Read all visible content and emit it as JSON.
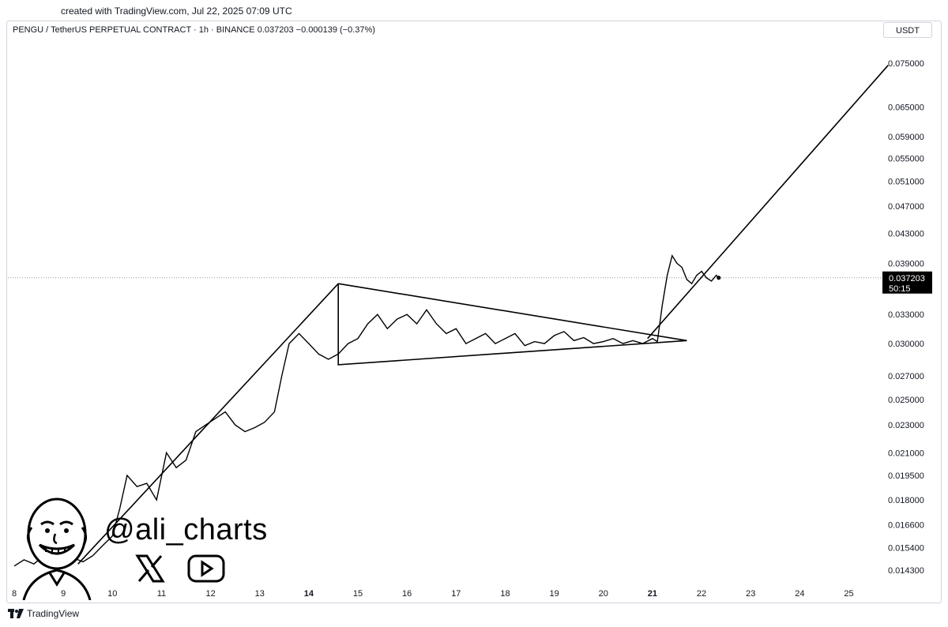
{
  "header": {
    "created": "created with TradingView.com, Jul 22, 2025 07:09 UTC",
    "symbol_line": "PENGU / TetherUS PERPETUAL CONTRACT · 1h · BINANCE  0.037203  −0.000139 (−0.37%)",
    "currency": "USDT"
  },
  "price_tag": {
    "price": "0.037203",
    "countdown": "50:15"
  },
  "watermark": {
    "handle": "@ali_charts",
    "x_icon": "x-logo-icon",
    "youtube_icon": "youtube-logo-icon"
  },
  "footer": {
    "brand": "TradingView"
  },
  "chart_data": {
    "type": "line",
    "scale": "log",
    "ylim": [
      0.0138,
      0.079
    ],
    "xlim": [
      8,
      25.7
    ],
    "y_ticks": [
      "0.075000",
      "0.065000",
      "0.059000",
      "0.055000",
      "0.051000",
      "0.047000",
      "0.043000",
      "0.039000",
      "0.033000",
      "0.030000",
      "0.027000",
      "0.025000",
      "0.023000",
      "0.021000",
      "0.019500",
      "0.018000",
      "0.016600",
      "0.015400",
      "0.014300"
    ],
    "x_ticks": [
      {
        "label": "8",
        "day": 8,
        "bold": false
      },
      {
        "label": "9",
        "day": 9,
        "bold": false
      },
      {
        "label": "10",
        "day": 10,
        "bold": false
      },
      {
        "label": "11",
        "day": 11,
        "bold": false
      },
      {
        "label": "12",
        "day": 12,
        "bold": false
      },
      {
        "label": "13",
        "day": 13,
        "bold": false
      },
      {
        "label": "14",
        "day": 14,
        "bold": true
      },
      {
        "label": "15",
        "day": 15,
        "bold": false
      },
      {
        "label": "16",
        "day": 16,
        "bold": false
      },
      {
        "label": "17",
        "day": 17,
        "bold": false
      },
      {
        "label": "18",
        "day": 18,
        "bold": false
      },
      {
        "label": "19",
        "day": 19,
        "bold": false
      },
      {
        "label": "20",
        "day": 20,
        "bold": false
      },
      {
        "label": "21",
        "day": 21,
        "bold": true
      },
      {
        "label": "22",
        "day": 22,
        "bold": false
      },
      {
        "label": "23",
        "day": 23,
        "bold": false
      },
      {
        "label": "24",
        "day": 24,
        "bold": false
      },
      {
        "label": "25",
        "day": 25,
        "bold": false
      }
    ],
    "last_price": 0.037203,
    "series": [
      {
        "x": [
          8.0,
          8.2,
          8.4,
          8.6,
          8.8,
          9.0,
          9.2,
          9.4,
          9.6,
          9.8,
          10.0,
          10.15,
          10.3,
          10.5,
          10.7,
          10.9,
          11.1,
          11.3,
          11.5,
          11.7,
          11.9,
          12.1,
          12.3,
          12.5,
          12.7,
          12.9,
          13.1,
          13.3,
          13.45,
          13.6,
          13.8,
          14.0,
          14.2,
          14.4,
          14.6,
          14.8,
          15.0,
          15.2,
          15.4,
          15.6,
          15.8,
          16.0,
          16.2,
          16.4,
          16.6,
          16.8,
          17.0,
          17.2,
          17.4,
          17.6,
          17.8,
          18.0,
          18.2,
          18.4,
          18.6,
          18.8,
          19.0,
          19.2,
          19.4,
          19.6,
          19.8,
          20.0,
          20.2,
          20.4,
          20.6,
          20.8,
          21.0,
          21.1,
          21.2,
          21.3,
          21.4,
          21.5,
          21.6,
          21.7,
          21.8,
          21.9,
          22.0,
          22.1,
          22.2,
          22.3,
          22.35
        ],
        "y": [
          0.0145,
          0.0148,
          0.0146,
          0.015,
          0.0152,
          0.0151,
          0.0149,
          0.0147,
          0.015,
          0.0155,
          0.016,
          0.0175,
          0.0195,
          0.0188,
          0.019,
          0.018,
          0.021,
          0.02,
          0.0205,
          0.0225,
          0.023,
          0.0235,
          0.024,
          0.023,
          0.0225,
          0.0228,
          0.0232,
          0.024,
          0.027,
          0.03,
          0.031,
          0.03,
          0.029,
          0.0285,
          0.029,
          0.03,
          0.0305,
          0.032,
          0.033,
          0.0315,
          0.0325,
          0.033,
          0.032,
          0.0335,
          0.032,
          0.031,
          0.0315,
          0.03,
          0.0305,
          0.031,
          0.03,
          0.0305,
          0.031,
          0.0298,
          0.0302,
          0.03,
          0.0308,
          0.0312,
          0.0303,
          0.0306,
          0.03,
          0.0302,
          0.0305,
          0.03,
          0.0303,
          0.03,
          0.0305,
          0.0302,
          0.034,
          0.0375,
          0.04,
          0.039,
          0.0385,
          0.037,
          0.0365,
          0.0375,
          0.038,
          0.0372,
          0.0368,
          0.0375,
          0.0372
        ]
      }
    ],
    "annotations": {
      "triangle": [
        [
          14.6,
          0.0365
        ],
        [
          14.6,
          0.028
        ],
        [
          21.7,
          0.0303
        ]
      ],
      "support_line": [
        [
          9.3,
          0.0146
        ],
        [
          14.6,
          0.0365
        ]
      ],
      "breakout_line": [
        [
          20.9,
          0.0305
        ],
        [
          25.8,
          0.0745
        ]
      ]
    }
  }
}
